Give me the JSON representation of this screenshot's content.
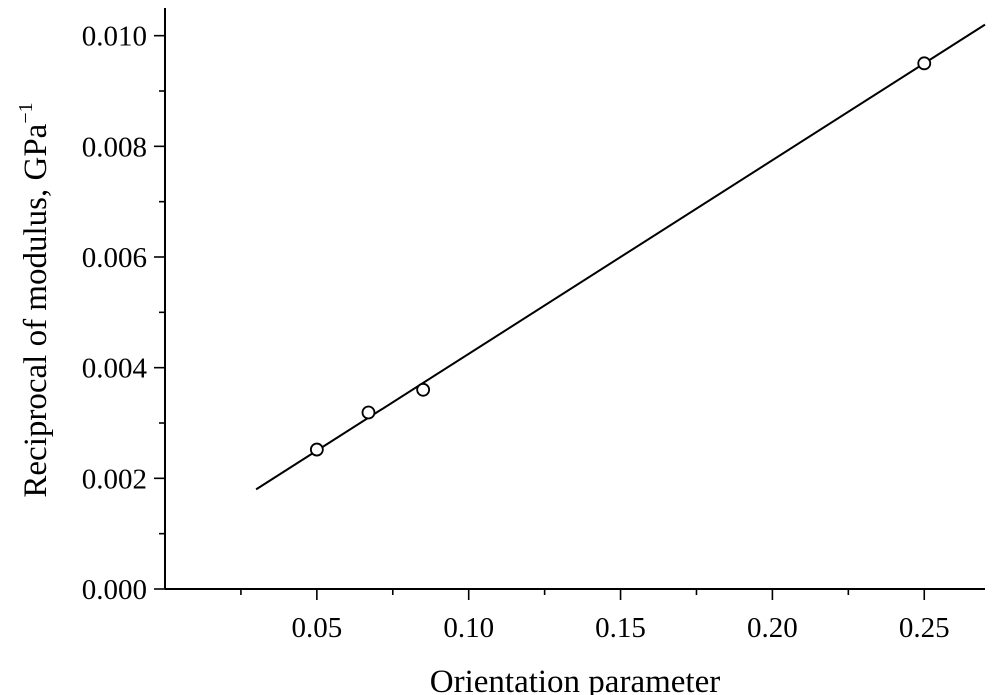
{
  "chart_data": {
    "type": "scatter",
    "xlabel": "Orientation parameter",
    "ylabel": "Reciprocal of modulus, GPa",
    "ylabel_superscript": "−1",
    "xlim": [
      0.0,
      0.27
    ],
    "ylim": [
      0.0,
      0.0105
    ],
    "x_ticks": [
      0.05,
      0.1,
      0.15,
      0.2,
      0.25
    ],
    "x_tick_labels": [
      "0.05",
      "0.10",
      "0.15",
      "0.20",
      "0.25"
    ],
    "x_minor_ticks": [
      0.025,
      0.075,
      0.125,
      0.175,
      0.225
    ],
    "y_ticks": [
      0.0,
      0.002,
      0.004,
      0.006,
      0.008,
      0.01
    ],
    "y_tick_labels": [
      "0.000",
      "0.002",
      "0.004",
      "0.006",
      "0.008",
      "0.010"
    ],
    "y_minor_ticks": [
      0.001,
      0.003,
      0.005,
      0.007,
      0.009
    ],
    "grid": false,
    "series": [
      {
        "marker": "open-circle",
        "x": [
          0.05,
          0.067,
          0.085,
          0.25
        ],
        "y": [
          0.00252,
          0.00319,
          0.0036,
          0.0095
        ]
      }
    ],
    "fit_line": {
      "x": [
        0.03,
        0.27
      ],
      "y": [
        0.0018,
        0.0102
      ]
    }
  }
}
